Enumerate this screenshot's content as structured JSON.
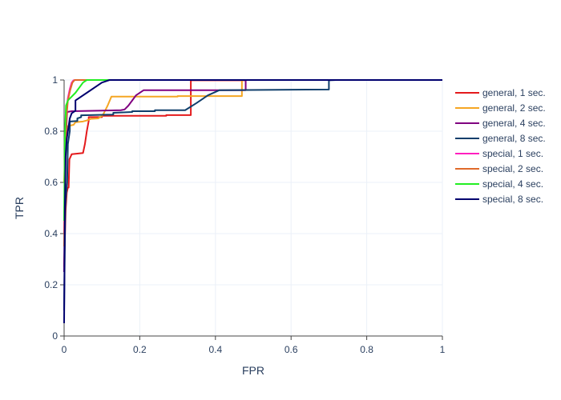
{
  "chart_data": {
    "type": "line",
    "xlabel": "FPR",
    "ylabel": "TPR",
    "xlim": [
      0,
      1
    ],
    "ylim": [
      0,
      1
    ],
    "x_ticks": [
      "0",
      "0.2",
      "0.4",
      "0.6",
      "0.8",
      "1"
    ],
    "y_ticks": [
      "0",
      "0.2",
      "0.4",
      "0.6",
      "0.8",
      "1"
    ],
    "grid": true,
    "legend_position": "right",
    "series": [
      {
        "name": "general, 1 sec.",
        "color": "#e41a1c",
        "x": [
          0,
          0.004,
          0.007,
          0.01,
          0.012,
          0.014,
          0.017,
          0.02,
          0.05,
          0.055,
          0.06,
          0.065,
          0.065,
          0.1,
          0.1,
          0.27,
          0.27,
          0.335,
          0.335,
          0.48,
          0.48,
          1
        ],
        "y": [
          0.27,
          0.49,
          0.56,
          0.58,
          0.58,
          0.69,
          0.7,
          0.71,
          0.715,
          0.75,
          0.8,
          0.84,
          0.855,
          0.855,
          0.86,
          0.86,
          0.863,
          0.863,
          0.999,
          0.999,
          1.0,
          1.0
        ]
      },
      {
        "name": "general, 2 sec.",
        "color": "#f5a623",
        "x": [
          0,
          0.003,
          0.005,
          0.01,
          0.01,
          0.025,
          0.03,
          0.05,
          0.06,
          0.065,
          0.07,
          0.09,
          0.1,
          0.105,
          0.115,
          0.125,
          0.3,
          0.3,
          0.47,
          0.47,
          1
        ],
        "y": [
          0.6,
          0.75,
          0.8,
          0.8,
          0.82,
          0.825,
          0.835,
          0.838,
          0.842,
          0.845,
          0.848,
          0.85,
          0.86,
          0.87,
          0.9,
          0.935,
          0.935,
          0.937,
          0.937,
          1.0,
          1.0
        ]
      },
      {
        "name": "general, 4 sec.",
        "color": "#800080",
        "x": [
          0,
          0.003,
          0.007,
          0.008,
          0.02,
          0.15,
          0.16,
          0.17,
          0.18,
          0.19,
          0.21,
          0.48,
          0.48,
          1
        ],
        "y": [
          0.25,
          0.7,
          0.85,
          0.875,
          0.878,
          0.882,
          0.885,
          0.9,
          0.92,
          0.94,
          0.96,
          0.96,
          1.0,
          1.0
        ]
      },
      {
        "name": "general, 8 sec.",
        "color": "#0f3e6b",
        "x": [
          0,
          0.003,
          0.005,
          0.008,
          0.01,
          0.015,
          0.015,
          0.035,
          0.035,
          0.045,
          0.045,
          0.13,
          0.13,
          0.18,
          0.18,
          0.24,
          0.24,
          0.32,
          0.35,
          0.38,
          0.41,
          0.7,
          0.7,
          0.72,
          1
        ],
        "y": [
          0.1,
          0.5,
          0.55,
          0.6,
          0.75,
          0.8,
          0.838,
          0.84,
          0.85,
          0.855,
          0.862,
          0.865,
          0.872,
          0.875,
          0.878,
          0.878,
          0.882,
          0.882,
          0.91,
          0.94,
          0.96,
          0.963,
          0.999,
          1.0,
          1.0
        ]
      },
      {
        "name": "special, 1 sec.",
        "color": "#ff1fbf",
        "x": [
          0,
          0.003,
          0.006,
          0.01,
          0.015,
          0.02,
          0.025,
          0.03,
          1
        ],
        "y": [
          0.4,
          0.78,
          0.88,
          0.93,
          0.965,
          0.99,
          0.999,
          1.0,
          1.0
        ]
      },
      {
        "name": "special, 2 sec.",
        "color": "#e06a2a",
        "x": [
          0,
          0.003,
          0.006,
          0.01,
          0.016,
          0.022,
          0.028,
          1
        ],
        "y": [
          0.35,
          0.7,
          0.85,
          0.92,
          0.96,
          0.99,
          1.0,
          1.0
        ]
      },
      {
        "name": "special, 4 sec.",
        "color": "#22ee22",
        "x": [
          0,
          0.002,
          0.005,
          0.01,
          0.03,
          0.05,
          0.06,
          1
        ],
        "y": [
          0.45,
          0.78,
          0.9,
          0.92,
          0.95,
          0.99,
          1.0,
          1.0
        ]
      },
      {
        "name": "special, 8 sec.",
        "color": "#00006e",
        "x": [
          0,
          0.002,
          0.004,
          0.007,
          0.01,
          0.015,
          0.02,
          0.03,
          0.03,
          0.06,
          0.1,
          0.12,
          1
        ],
        "y": [
          0.05,
          0.5,
          0.7,
          0.77,
          0.8,
          0.85,
          0.87,
          0.88,
          0.92,
          0.95,
          0.99,
          1.0,
          1.0
        ]
      }
    ]
  }
}
